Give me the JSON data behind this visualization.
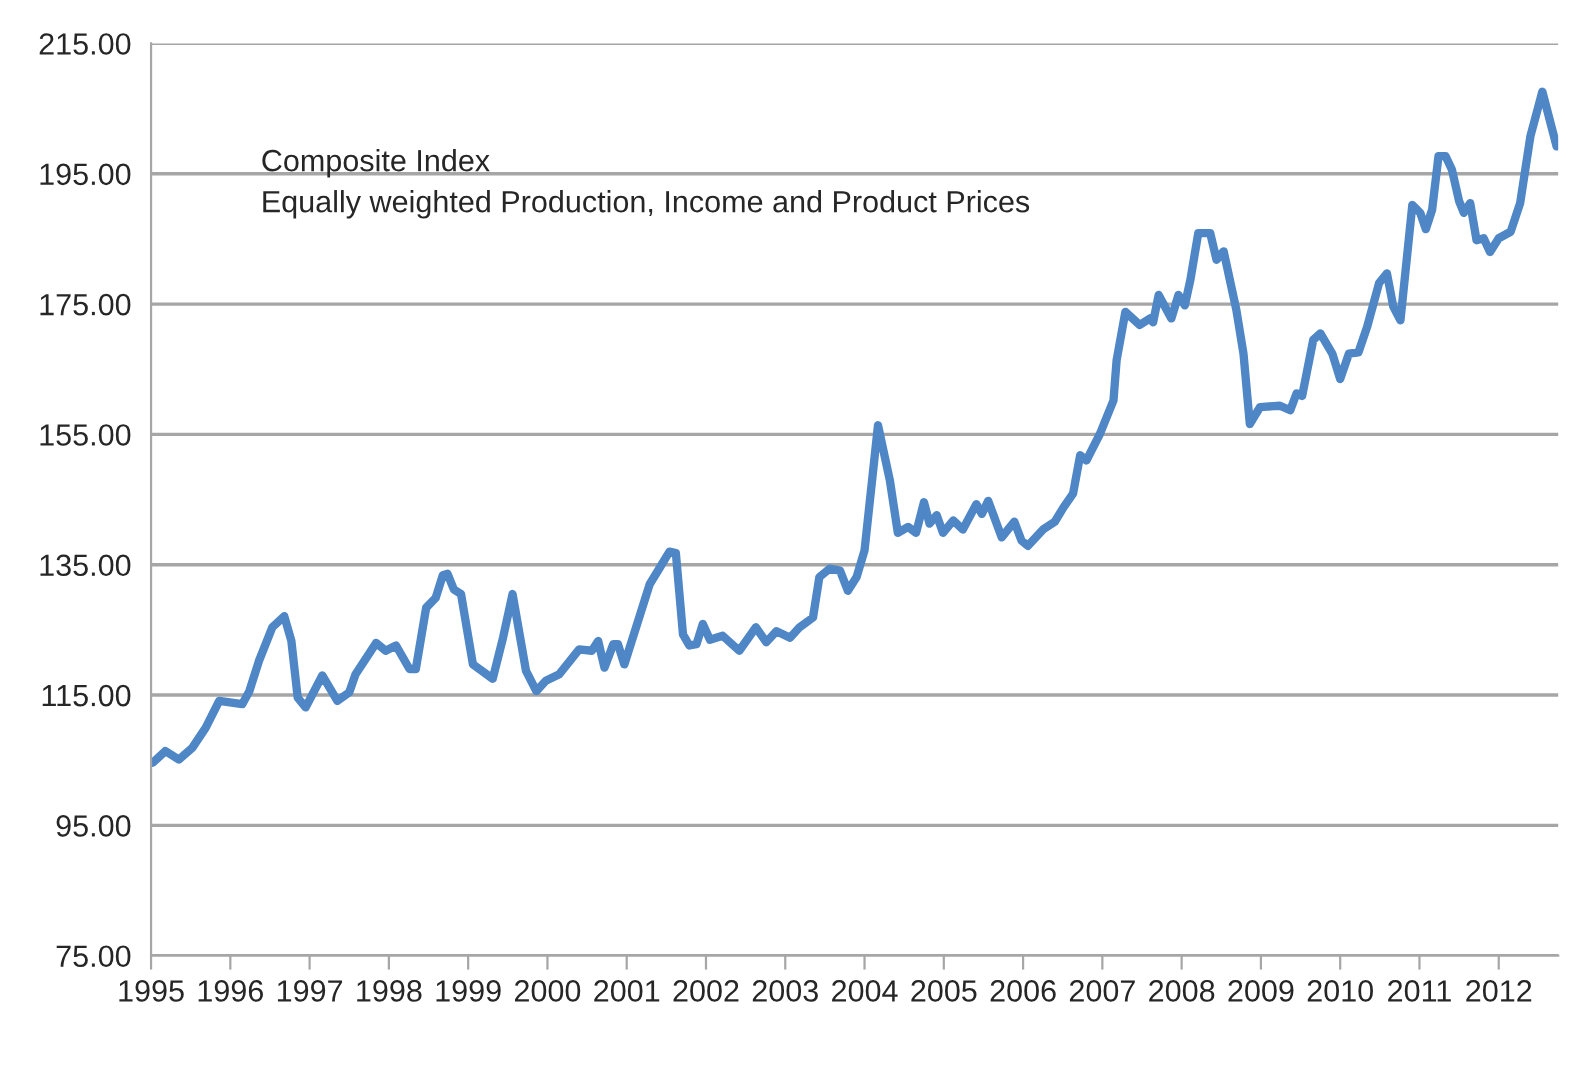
{
  "chart_data": {
    "type": "line",
    "annotations": [
      "Composite Index",
      "Equally weighted Production, Income and Product Prices"
    ],
    "x": [
      1995.02,
      1995.18,
      1995.35,
      1995.52,
      1995.69,
      1995.86,
      1996.15,
      1996.24,
      1996.36,
      1996.53,
      1996.68,
      1996.77,
      1996.85,
      1996.95,
      1997.16,
      1997.35,
      1997.5,
      1997.58,
      1997.84,
      1997.96,
      1998.09,
      1998.26,
      1998.34,
      1998.47,
      1998.59,
      1998.68,
      1998.74,
      1998.82,
      1998.91,
      1999.06,
      1999.31,
      1999.44,
      1999.56,
      1999.73,
      1999.86,
      1999.98,
      2000.15,
      2000.4,
      2000.56,
      2000.64,
      2000.72,
      2000.83,
      2000.89,
      2000.97,
      2001.29,
      2001.43,
      2001.54,
      2001.62,
      2001.71,
      2001.79,
      2001.88,
      2001.96,
      2002.05,
      2002.21,
      2002.42,
      2002.63,
      2002.76,
      2002.89,
      2003.06,
      2003.18,
      2003.35,
      2003.43,
      2003.56,
      2003.69,
      2003.79,
      2003.9,
      2004.0,
      2004.17,
      2004.32,
      2004.42,
      2004.55,
      2004.65,
      2004.75,
      2004.82,
      2004.91,
      2004.99,
      2005.12,
      2005.24,
      2005.41,
      2005.48,
      2005.56,
      2005.73,
      2005.89,
      2005.98,
      2006.06,
      2006.26,
      2006.4,
      2006.51,
      2006.63,
      2006.72,
      2006.8,
      2006.97,
      2007.14,
      2007.18,
      2007.29,
      2007.47,
      2007.6,
      2007.64,
      2007.71,
      2007.87,
      2007.96,
      2008.04,
      2008.11,
      2008.21,
      2008.36,
      2008.44,
      2008.53,
      2008.69,
      2008.78,
      2008.86,
      2008.99,
      2009.24,
      2009.37,
      2009.45,
      2009.52,
      2009.66,
      2009.75,
      2009.9,
      2010.0,
      2010.11,
      2010.23,
      2010.34,
      2010.49,
      2010.59,
      2010.67,
      2010.76,
      2010.91,
      2011.01,
      2011.08,
      2011.16,
      2011.24,
      2011.33,
      2011.41,
      2011.5,
      2011.56,
      2011.64,
      2011.72,
      2011.81,
      2011.89,
      2012.0,
      2012.15,
      2012.27,
      2012.4,
      2012.55,
      2012.73
    ],
    "series": [
      {
        "color": "#4f86c6",
        "values": [
          104.6,
          106.4,
          105.1,
          106.9,
          110.0,
          114.1,
          113.6,
          115.6,
          120.2,
          125.4,
          127.1,
          123.3,
          114.6,
          113.1,
          118.0,
          114.1,
          115.4,
          118.2,
          123.0,
          121.8,
          122.6,
          119.0,
          119.0,
          128.4,
          129.9,
          133.4,
          133.6,
          131.2,
          130.5,
          119.7,
          117.5,
          123.8,
          130.5,
          118.7,
          115.6,
          117.2,
          118.2,
          122.0,
          121.8,
          123.3,
          119.2,
          122.8,
          122.8,
          119.7,
          132.0,
          134.8,
          137.0,
          136.8,
          124.3,
          122.6,
          122.8,
          125.9,
          123.5,
          124.1,
          121.8,
          125.4,
          123.1,
          124.8,
          123.8,
          125.4,
          126.9,
          133.1,
          134.4,
          134.1,
          131.0,
          133.1,
          137.2,
          156.4,
          147.9,
          139.9,
          140.8,
          139.9,
          144.6,
          141.3,
          142.6,
          139.9,
          141.8,
          140.4,
          144.3,
          142.8,
          144.8,
          139.2,
          141.6,
          138.7,
          137.9,
          140.5,
          141.6,
          143.8,
          145.9,
          151.8,
          151.0,
          155.1,
          160.2,
          166.4,
          173.8,
          171.8,
          172.8,
          172.2,
          176.4,
          172.8,
          176.4,
          174.8,
          178.7,
          185.9,
          185.9,
          181.8,
          183.1,
          174.1,
          167.4,
          156.6,
          159.2,
          159.4,
          158.7,
          161.3,
          160.9,
          169.5,
          170.5,
          167.4,
          163.5,
          167.4,
          167.6,
          171.5,
          178.2,
          179.7,
          174.6,
          172.5,
          190.2,
          189.0,
          186.5,
          189.5,
          197.7,
          197.7,
          195.6,
          190.8,
          189.0,
          190.5,
          184.8,
          185.1,
          183.0,
          185.1,
          186.1,
          190.5,
          200.8,
          207.6,
          199.2
        ]
      }
    ],
    "xlim": [
      1995,
      2012.75
    ],
    "xticks": [
      1995,
      1996,
      1997,
      1998,
      1999,
      2000,
      2001,
      2002,
      2003,
      2004,
      2005,
      2006,
      2007,
      2008,
      2009,
      2010,
      2011,
      2012
    ],
    "ylim": [
      75,
      215
    ],
    "yticks": [
      {
        "value": 75,
        "label": "75.00"
      },
      {
        "value": 95,
        "label": "95.00"
      },
      {
        "value": 115,
        "label": "115.00"
      },
      {
        "value": 135,
        "label": "135.00"
      },
      {
        "value": 155,
        "label": "155.00"
      },
      {
        "value": 175,
        "label": "175.00"
      },
      {
        "value": 195,
        "label": "195.00"
      },
      {
        "value": 215,
        "label": "215.00"
      }
    ],
    "grid": "y",
    "marker": "none",
    "line_style": "solid"
  }
}
